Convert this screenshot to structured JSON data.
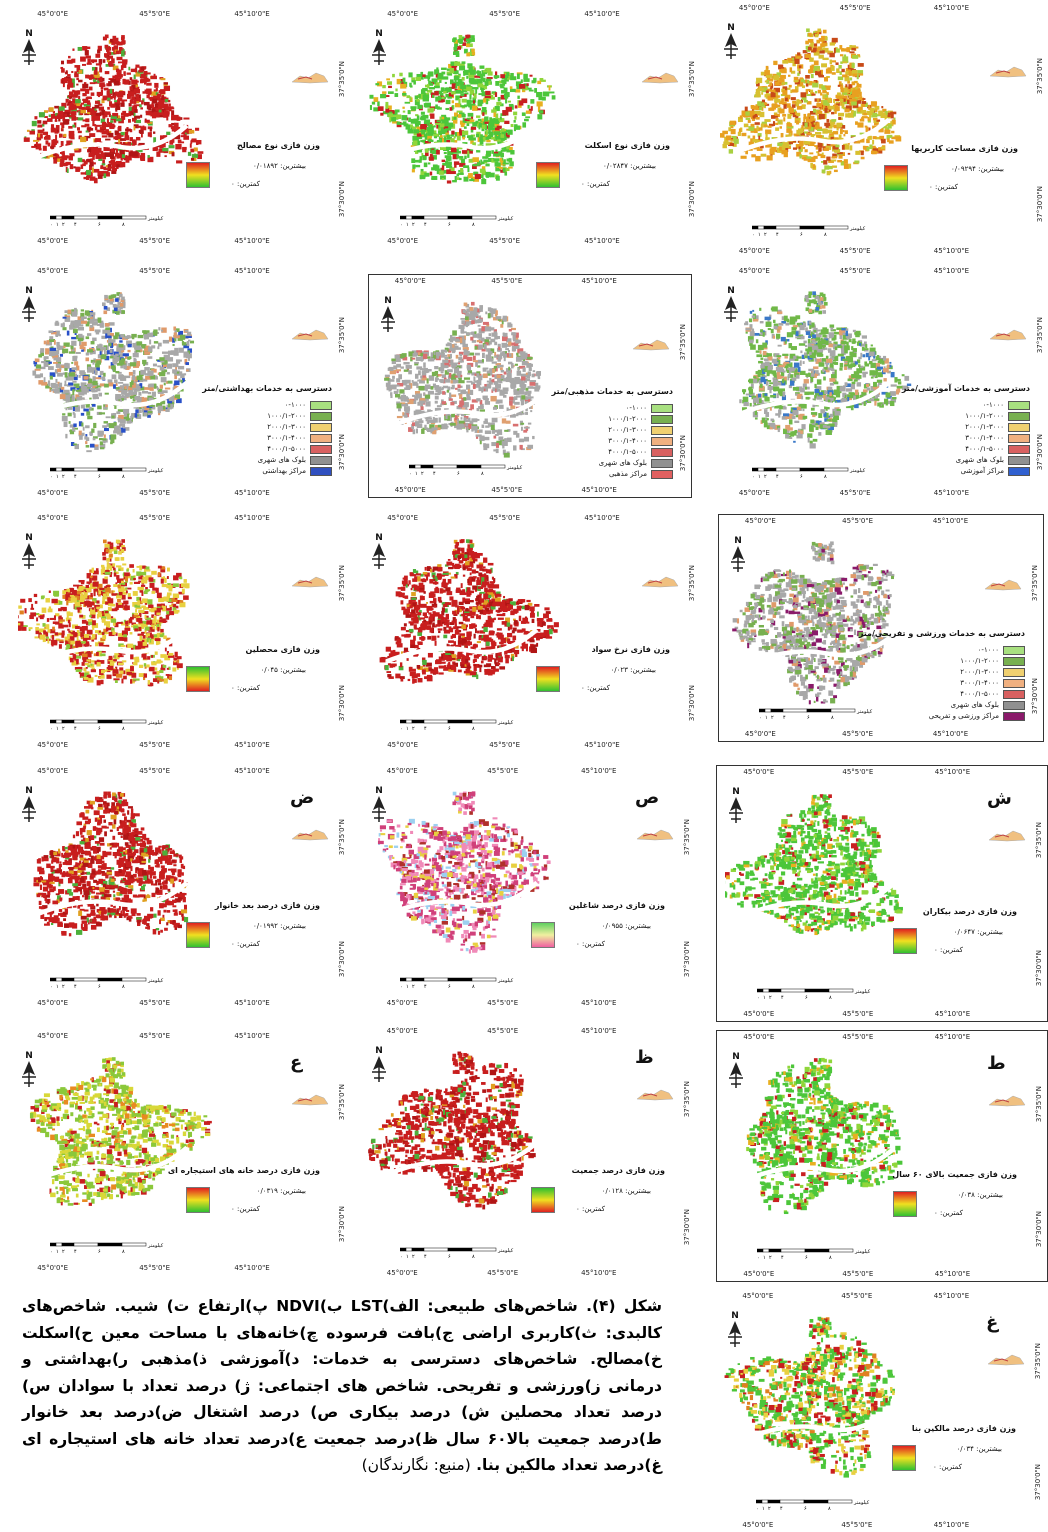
{
  "lon_labels": [
    "45°0'0\"E",
    "45°5'0\"E",
    "45°10'0\"E"
  ],
  "lat_labels": [
    "37°35'0\"N",
    "37°30'0\"N"
  ],
  "north_label": "N",
  "panels": [
    {
      "id": "p1",
      "letter": "",
      "legend_title": "وزن فازی نوع مصالح",
      "high": "بیشترین: ۰/۰۱۸۹۲",
      "low": "کمترین: ۰",
      "map_palette": "red",
      "grad": "ryg"
    },
    {
      "id": "p2",
      "letter": "",
      "legend_title": "وزن فازی نوع اسکلت",
      "high": "بیشترین: ۰/۰۲۸۴۷",
      "low": "کمترین: ۰",
      "map_palette": "green",
      "grad": "ryg"
    },
    {
      "id": "p3",
      "letter": "",
      "legend_title": "وزن فازی مساحت کاربریها",
      "high": "بیشترین: ۰/۰۹۲۹۴",
      "low": "کمترین: ۰",
      "map_palette": "orange",
      "grad": "ryg"
    },
    {
      "id": "p4",
      "letter": "",
      "legend_title": "دسترسی به خدمات بهداشتی/متر",
      "rows": [
        "۰-۱۰۰۰",
        "۱۰۰۰/۱-۲۰۰۰",
        "۲۰۰۰/۱-۳۰۰۰",
        "۳۰۰۰/۱-۴۰۰۰",
        "۴۰۰۰/۱-۵۰۰۰",
        "بلوک های شهری",
        "مراکز بهداشتی"
      ],
      "map_palette": "access_blue"
    },
    {
      "id": "p5",
      "letter": "",
      "legend_title": "دسترسی به خدمات مذهبی/متر",
      "rows": [
        "۰-۱۰۰۰",
        "۱۰۰۰/۱-۲۰۰۰",
        "۲۰۰۰/۱-۳۰۰۰",
        "۳۰۰۰/۱-۴۰۰۰",
        "۴۰۰۰/۱-۵۰۰۰",
        "بلوک های شهری",
        "مراکز مذهبی"
      ],
      "map_palette": "access_red"
    },
    {
      "id": "p6",
      "letter": "",
      "legend_title": "دسترسی به خدمات آموزشی/متر",
      "rows": [
        "۰-۱۰۰۰",
        "۱۰۰۰/۱-۲۰۰۰",
        "۲۰۰۰/۱-۳۰۰۰",
        "۳۰۰۰/۱-۴۰۰۰",
        "۴۰۰۰/۱-۵۰۰۰",
        "بلوک های شهری",
        "مراکز آموزشی"
      ],
      "map_palette": "access_green"
    },
    {
      "id": "p7",
      "letter": "",
      "legend_title": "وزن فازی محصلین",
      "high": "بیشترین: ۰/۰۴۵",
      "low": "کمترین: ۰",
      "map_palette": "redyellow",
      "grad": "gyr"
    },
    {
      "id": "p8",
      "letter": "",
      "legend_title": "وزن فازی نرخ سواد",
      "high": "بیشترین: ۰/۰۲۳",
      "low": "کمترین: ۰",
      "map_palette": "red",
      "grad": "ryg"
    },
    {
      "id": "p9",
      "letter": "",
      "legend_title": "دسترسی به خدمات ورزشی و تفریحی/متر",
      "rows": [
        "۰-۱۰۰۰",
        "۱۰۰۰/۱-۲۰۰۰",
        "۲۰۰۰/۱-۳۰۰۰",
        "۳۰۰۰/۱-۴۰۰۰",
        "۴۰۰۰/۱-۵۰۰۰",
        "بلوک های شهری",
        "مراکز ورزشی و تفریحی"
      ],
      "map_palette": "access_purple"
    },
    {
      "id": "p10",
      "letter": "ض",
      "legend_title": "وزن فازی درصد بعد خانوار",
      "high": "بیشترین: ۰/۰۱۹۹۲",
      "low": "کمترین: ۰",
      "map_palette": "red",
      "grad": "ryg"
    },
    {
      "id": "p11",
      "letter": "ص",
      "legend_title": "وزن فازی درصد شاغلین",
      "high": "بیشترین: ۰/۰۹۵۵",
      "low": "کمترین: ۰",
      "map_palette": "pink",
      "grad": "gp"
    },
    {
      "id": "p12",
      "letter": "ش",
      "legend_title": "وزن فازی درصد بیکاران",
      "high": "بیشترین: ۰/۰۶۴۷",
      "low": "کمترین: ۰",
      "map_palette": "green",
      "grad": "ryg"
    },
    {
      "id": "p13",
      "letter": "ع",
      "legend_title": "وزن فازی درصد خانه های استیجاره ای",
      "high": "بیشترین: ۰/۰۳۱۹",
      "low": "کمترین: ۰",
      "map_palette": "greenyellow",
      "grad": "ryg"
    },
    {
      "id": "p14",
      "letter": "ظ",
      "legend_title": "وزن فازی درصد جمعیت",
      "high": "بیشترین: ۰/۰۱۲۸",
      "low": "کمترین: ۰",
      "map_palette": "red",
      "grad": "gyr"
    },
    {
      "id": "p15",
      "letter": "ط",
      "legend_title": "وزن فازی جمعیت بالای ۶۰ سال",
      "high": "بیشترین: ۰/۰۳۸",
      "low": "کمترین: ۰",
      "map_palette": "green",
      "grad": "ryg"
    },
    {
      "id": "p16",
      "letter": "غ",
      "legend_title": "وزن فازی درصد مالکین بنا",
      "high": "بیشترین: ۰/۰۳۴",
      "low": "کمترین: ۰",
      "map_palette": "greenred",
      "grad": "ryg"
    }
  ],
  "scale_unit": "کیلومتر",
  "scale_ticks": [
    "۰",
    "۱",
    "۲",
    "۴",
    "۶",
    "۸"
  ],
  "caption": {
    "text": "شکل (۴). شاخص‌های طبیعی: الف)LST ب)NDVI پ)ارتفاع ت) شیب. شاخص‌های کالبدی: ث)کاربری اراضی ج)بافت فرسوده چ)خانه‌های با مساحت معین ح)اسکلت خ)مصالح. شاخص‌های دسترسی به خدمات: د)آموزشی ذ)مذهبی ر)بهداشتی و درمانی ز)ورزشی و تفریحی. شاخص های اجتماعی: ژ) درصد تعداد با سوادان س) درصد تعداد محصلین ش) درصد بیکاری ص) درصد اشتغال ض)درصد بعد خانوار ط)درصد جمعیت بالا۶۰ سال ظ)درصد جمعیت ع)درصد تعداد خانه های استیجاره ای غ)درصد تعداد مالکین بنا.",
    "source": "(منبع: نگارندگان)"
  }
}
